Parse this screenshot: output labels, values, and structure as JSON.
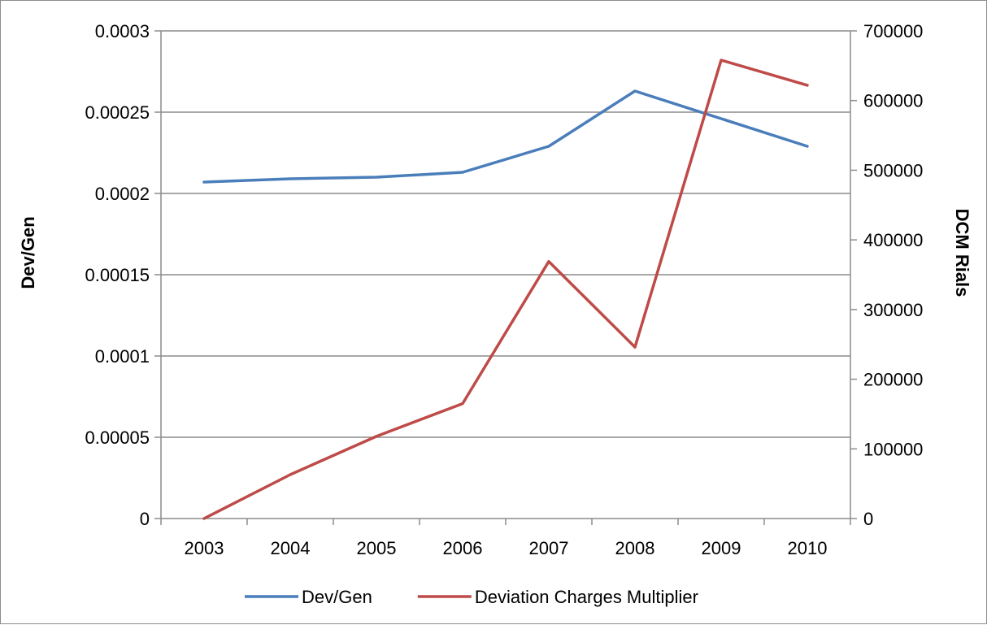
{
  "chart_data": {
    "type": "line",
    "categories": [
      "2003",
      "2004",
      "2005",
      "2006",
      "2007",
      "2008",
      "2009",
      "2010"
    ],
    "series": [
      {
        "name": "Dev/Gen",
        "axis": "left",
        "color": "#4A7EBB",
        "values": [
          0.000207,
          0.000209,
          0.00021,
          0.000213,
          0.000229,
          0.000263,
          0.000246,
          0.000229
        ]
      },
      {
        "name": "Deviation Charges Multiplier",
        "axis": "right",
        "color": "#BE4B48",
        "values": [
          0,
          63000,
          118000,
          165000,
          369000,
          246000,
          658000,
          622000
        ]
      }
    ],
    "ylabel": "Dev/Gen",
    "y2label": "DCM Rials",
    "ylim": [
      0,
      0.0003
    ],
    "y2lim": [
      0,
      700000
    ],
    "yticks": [
      "0",
      "0.00005",
      "0.0001",
      "0.00015",
      "0.0002",
      "0.00025",
      "0.0003"
    ],
    "y2ticks": [
      "0",
      "100000",
      "200000",
      "300000",
      "400000",
      "500000",
      "600000",
      "700000"
    ],
    "grid": true,
    "legend": "bottom"
  }
}
